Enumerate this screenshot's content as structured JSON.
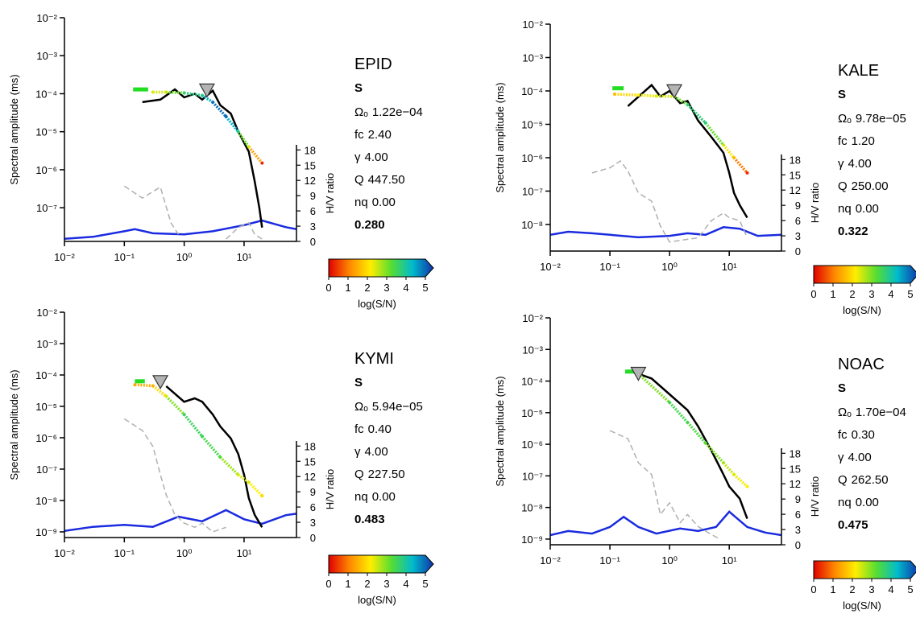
{
  "chart_data": [
    {
      "type": "line",
      "title": "EPID",
      "phase": "S",
      "ylabel": "Spectral amplitude (ms)",
      "y2label": "H/V ratio",
      "log_x": true,
      "log_y": true,
      "xlim": [
        0.01,
        75
      ],
      "xticks": [
        {
          "value": 0.01,
          "label": "10⁻²"
        },
        {
          "value": 0.1,
          "label": "10⁻¹"
        },
        {
          "value": 1,
          "label": "10⁰"
        },
        {
          "value": 10,
          "label": "10¹"
        }
      ],
      "ylim": [
        1.3e-08,
        0.01
      ],
      "yticks": [
        {
          "value": 0.01,
          "label": "10⁻²"
        },
        {
          "value": 0.001,
          "label": "10⁻³"
        },
        {
          "value": 0.0001,
          "label": "10⁻⁴"
        },
        {
          "value": 1e-05,
          "label": "10⁻⁵"
        },
        {
          "value": 1e-06,
          "label": "10⁻⁶"
        },
        {
          "value": 1e-07,
          "label": "10⁻⁷"
        }
      ],
      "y2lim": [
        0,
        19
      ],
      "y2ticks": [
        0,
        3,
        6,
        9,
        12,
        15,
        18
      ],
      "spectrum": {
        "color": "#000000",
        "x": [
          0.2,
          0.4,
          0.7,
          1.0,
          1.5,
          2,
          3,
          4,
          6,
          8,
          12,
          15,
          18,
          20
        ],
        "values": [
          6e-05,
          7e-05,
          0.00013,
          8e-05,
          0.0001,
          7e-05,
          0.00012,
          5e-05,
          3e-05,
          1e-05,
          3e-06,
          5e-07,
          1e-07,
          3e-08
        ]
      },
      "noise": {
        "color": "#b0b0b0",
        "x": [
          0.1,
          0.2,
          0.4,
          0.6,
          0.8,
          1.0,
          5,
          8,
          12,
          15,
          20
        ],
        "values": [
          3.7e-07,
          1.8e-07,
          3.5e-07,
          4e-08,
          2e-08,
          null,
          1.5e-08,
          3e-08,
          4e-08,
          2e-08,
          1.5e-08
        ]
      },
      "model": {
        "x": [
          0.3,
          0.5,
          1,
          2,
          3,
          5,
          8,
          12,
          20
        ],
        "values": [
          0.00011,
          0.00011,
          0.000105,
          9e-05,
          6e-05,
          2.5e-05,
          1e-05,
          4e-06,
          1.5e-06
        ],
        "snr": [
          2.2,
          2.3,
          3.4,
          3.6,
          4.5,
          4.6,
          3.5,
          2.2,
          0.3
        ]
      },
      "plateau": {
        "color": "#22dd22",
        "x": [
          0.14,
          0.25
        ],
        "values": [
          0.00013,
          0.00013
        ]
      },
      "hv": {
        "color": "#1a2be0",
        "axis": "y2",
        "x": [
          0.01,
          0.03,
          0.1,
          0.15,
          0.3,
          1,
          3,
          10,
          20,
          50,
          75
        ],
        "values": [
          0.5,
          0.9,
          2.0,
          2.4,
          1.6,
          1.4,
          2.0,
          3.2,
          4.1,
          2.8,
          2.4
        ]
      },
      "parameters": {
        "names": [
          "Ωₒ",
          "fc",
          "γ",
          "Q",
          "nq"
        ],
        "values": [
          0.000122,
          2.4,
          4,
          447.5,
          0
        ],
        "value_labels": [
          "1.22e−04",
          "2.40",
          "4.00",
          "447.50",
          "0.00"
        ]
      },
      "score": 0.28,
      "score_label": "0.280",
      "colorbar": {
        "label": "log(S/N)",
        "lim": [
          0,
          5
        ],
        "ticks": [
          0,
          1,
          2,
          3,
          4,
          5
        ],
        "colors": [
          "#e00000",
          "#ff8800",
          "#ffee00",
          "#55dd33",
          "#00bbcc",
          "#1133aa"
        ]
      }
    },
    {
      "type": "line",
      "title": "KALE",
      "phase": "S",
      "ylabel": "Spectral amplitude (ms)",
      "y2label": "H/V ratio",
      "log_x": true,
      "log_y": true,
      "xlim": [
        0.01,
        75
      ],
      "xticks": [
        {
          "value": 0.01,
          "label": "10⁻²"
        },
        {
          "value": 0.1,
          "label": "10⁻¹"
        },
        {
          "value": 1,
          "label": "10⁰"
        },
        {
          "value": 10,
          "label": "10¹"
        }
      ],
      "ylim": [
        1.6e-09,
        0.01
      ],
      "yticks": [
        {
          "value": 0.01,
          "label": "10⁻²"
        },
        {
          "value": 0.001,
          "label": "10⁻³"
        },
        {
          "value": 0.0001,
          "label": "10⁻⁴"
        },
        {
          "value": 1e-05,
          "label": "10⁻⁵"
        },
        {
          "value": 1e-06,
          "label": "10⁻⁶"
        },
        {
          "value": 1e-07,
          "label": "10⁻⁷"
        },
        {
          "value": 1e-08,
          "label": "10⁻⁸"
        }
      ],
      "y2lim": [
        0,
        19
      ],
      "y2ticks": [
        0,
        3,
        6,
        9,
        12,
        15,
        18
      ],
      "spectrum": {
        "color": "#000000",
        "x": [
          0.2,
          0.5,
          0.7,
          1,
          1.5,
          2,
          3,
          5,
          8,
          10,
          12,
          15,
          20
        ],
        "values": [
          3.5e-05,
          0.00015,
          6.8e-05,
          0.0001,
          4.3e-05,
          5e-05,
          1.3e-05,
          4.2e-06,
          1.4e-06,
          3.5e-07,
          8.8e-08,
          3.8e-08,
          1.6e-08
        ]
      },
      "noise": {
        "color": "#b0b0b0",
        "x": [
          0.05,
          0.1,
          0.15,
          0.2,
          0.3,
          0.5,
          0.7,
          1,
          3,
          5,
          8,
          10,
          15,
          20
        ],
        "values": [
          3.5e-07,
          5e-07,
          8e-07,
          4e-07,
          8.8e-08,
          5e-08,
          9e-09,
          3e-09,
          4e-09,
          1.3e-08,
          2.2e-08,
          1.6e-08,
          1.3e-08,
          4e-09
        ]
      },
      "model": {
        "x": [
          0.12,
          0.3,
          0.6,
          1.2,
          2,
          4,
          8,
          12,
          20
        ],
        "values": [
          8e-05,
          7.5e-05,
          7e-05,
          6.8e-05,
          3.9e-05,
          1.1e-05,
          2.4e-06,
          1e-06,
          3.5e-07
        ],
        "snr": [
          1.5,
          2.0,
          2.2,
          2.3,
          3.4,
          3.5,
          2.3,
          1.5,
          0.3
        ]
      },
      "plateau": {
        "color": "#22dd22",
        "x": [
          0.11,
          0.17
        ],
        "values": [
          0.00012,
          0.00012
        ]
      },
      "hv": {
        "color": "#1a2be0",
        "axis": "y2",
        "x": [
          0.01,
          0.02,
          0.05,
          0.1,
          0.3,
          1,
          2,
          4,
          8,
          15,
          30,
          75
        ],
        "values": [
          3.2,
          3.8,
          3.5,
          3.2,
          2.7,
          3.0,
          3.5,
          3.2,
          4.7,
          4.4,
          3.0,
          3.2
        ]
      },
      "parameters": {
        "names": [
          "Ωₒ",
          "fc",
          "γ",
          "Q",
          "nq"
        ],
        "values": [
          9.78e-05,
          1.2,
          4,
          250,
          0
        ],
        "value_labels": [
          "9.78e−05",
          "1.20",
          "4.00",
          "250.00",
          "0.00"
        ]
      },
      "score": 0.322,
      "score_label": "0.322",
      "colorbar": {
        "label": "log(S/N)",
        "lim": [
          0,
          5
        ],
        "ticks": [
          0,
          1,
          2,
          3,
          4,
          5
        ],
        "colors": [
          "#e00000",
          "#ff8800",
          "#ffee00",
          "#55dd33",
          "#00bbcc",
          "#1133aa"
        ]
      }
    },
    {
      "type": "line",
      "title": "KYMI",
      "phase": "S",
      "ylabel": "Spectral amplitude (ms)",
      "y2label": "H/V ratio",
      "log_x": true,
      "log_y": true,
      "xlim": [
        0.01,
        75
      ],
      "xticks": [
        {
          "value": 0.01,
          "label": "10⁻²"
        },
        {
          "value": 0.1,
          "label": "10⁻¹"
        },
        {
          "value": 1,
          "label": "10⁰"
        },
        {
          "value": 10,
          "label": "10¹"
        }
      ],
      "ylim": [
        6.6e-10,
        0.01
      ],
      "yticks": [
        {
          "value": 0.01,
          "label": "10⁻²"
        },
        {
          "value": 0.001,
          "label": "10⁻³"
        },
        {
          "value": 0.0001,
          "label": "10⁻⁴"
        },
        {
          "value": 1e-05,
          "label": "10⁻⁵"
        },
        {
          "value": 1e-06,
          "label": "10⁻⁶"
        },
        {
          "value": 1e-07,
          "label": "10⁻⁷"
        },
        {
          "value": 1e-08,
          "label": "10⁻⁸"
        },
        {
          "value": 1e-09,
          "label": "10⁻⁹"
        }
      ],
      "y2lim": [
        0,
        19
      ],
      "y2ticks": [
        0,
        3,
        6,
        9,
        12,
        15,
        18
      ],
      "spectrum": {
        "color": "#000000",
        "x": [
          0.5,
          1,
          1.5,
          2,
          3,
          4,
          6,
          8,
          10,
          12,
          15,
          20
        ],
        "values": [
          4.4e-05,
          1.4e-05,
          1.8e-05,
          1.4e-05,
          5.5e-06,
          2.3e-06,
          9.5e-07,
          3e-07,
          6.6e-08,
          1.2e-08,
          3.5e-09,
          1.4e-09
        ]
      },
      "noise": {
        "color": "#b0b0b0",
        "x": [
          0.1,
          0.2,
          0.3,
          0.4,
          0.5,
          0.7,
          1,
          1.5,
          2,
          3,
          5
        ],
        "values": [
          4e-06,
          1.7e-06,
          5.3e-07,
          6.6e-08,
          1.5e-08,
          3.5e-09,
          1.9e-09,
          1.4e-09,
          1.9e-09,
          1e-09,
          1.4e-09
        ]
      },
      "model": {
        "x": [
          0.15,
          0.3,
          0.5,
          1,
          2,
          4,
          8,
          12,
          20
        ],
        "values": [
          4.9e-05,
          4.5e-05,
          2.1e-05,
          5.5e-06,
          1.1e-06,
          2.4e-07,
          6.6e-08,
          3.8e-08,
          1.4e-08
        ],
        "snr": [
          1.3,
          1.4,
          2.2,
          3.3,
          3.3,
          3.0,
          2.2,
          2.2,
          1.8
        ]
      },
      "plateau": {
        "color": "#22dd22",
        "x": [
          0.15,
          0.22
        ],
        "values": [
          6.3e-05,
          6.3e-05
        ]
      },
      "hv": {
        "color": "#1a2be0",
        "axis": "y2",
        "x": [
          0.01,
          0.03,
          0.1,
          0.3,
          0.8,
          2,
          5,
          10,
          20,
          50,
          75
        ],
        "values": [
          1.3,
          2.1,
          2.5,
          2.1,
          4.1,
          3.2,
          5.4,
          3.6,
          2.7,
          4.4,
          4.7
        ]
      },
      "parameters": {
        "names": [
          "Ωₒ",
          "fc",
          "γ",
          "Q",
          "nq"
        ],
        "values": [
          5.94e-05,
          0.4,
          4,
          227.5,
          0
        ],
        "value_labels": [
          "5.94e−05",
          "0.40",
          "4.00",
          "227.50",
          "0.00"
        ]
      },
      "score": 0.483,
      "score_label": "0.483",
      "colorbar": {
        "label": "log(S/N)",
        "lim": [
          0,
          5
        ],
        "ticks": [
          0,
          1,
          2,
          3,
          4,
          5
        ],
        "colors": [
          "#e00000",
          "#ff8800",
          "#ffee00",
          "#55dd33",
          "#00bbcc",
          "#1133aa"
        ]
      }
    },
    {
      "type": "line",
      "title": "NOAC",
      "phase": "S",
      "ylabel": "Spectral amplitude (ms)",
      "y2label": "H/V ratio",
      "log_x": true,
      "log_y": true,
      "xlim": [
        0.01,
        75
      ],
      "xticks": [
        {
          "value": 0.01,
          "label": "10⁻²"
        },
        {
          "value": 0.1,
          "label": "10⁻¹"
        },
        {
          "value": 1,
          "label": "10⁰"
        },
        {
          "value": 10,
          "label": "10¹"
        }
      ],
      "ylim": [
        6.6e-10,
        0.01
      ],
      "yticks": [
        {
          "value": 0.01,
          "label": "10⁻²"
        },
        {
          "value": 0.001,
          "label": "10⁻³"
        },
        {
          "value": 0.0001,
          "label": "10⁻⁴"
        },
        {
          "value": 1e-05,
          "label": "10⁻⁵"
        },
        {
          "value": 1e-06,
          "label": "10⁻⁶"
        },
        {
          "value": 1e-07,
          "label": "10⁻⁷"
        },
        {
          "value": 1e-08,
          "label": "10⁻⁸"
        },
        {
          "value": 1e-09,
          "label": "10⁻⁹"
        }
      ],
      "y2lim": [
        0,
        19
      ],
      "y2ticks": [
        0,
        3,
        6,
        9,
        12,
        15,
        18
      ],
      "spectrum": {
        "color": "#000000",
        "x": [
          0.25,
          0.3,
          0.5,
          1,
          2,
          3,
          5,
          8,
          10,
          15,
          20
        ],
        "values": [
          0.0002,
          0.00017,
          0.00012,
          3.8e-05,
          1.2e-05,
          3.7e-06,
          6.4e-07,
          1.1e-07,
          4.6e-08,
          1.9e-08,
          4.4e-09
        ]
      },
      "noise": {
        "color": "#b0b0b0",
        "x": [
          0.1,
          0.2,
          0.3,
          0.5,
          0.7,
          1,
          1.5,
          2,
          3,
          5,
          7
        ],
        "values": [
          2.7e-06,
          1.5e-06,
          2.6e-07,
          1.1e-07,
          6e-09,
          1.4e-08,
          3.3e-09,
          6e-09,
          2.5e-09,
          1.4e-09,
          1e-09
        ]
      },
      "model": {
        "x": [
          0.3,
          1,
          2,
          4,
          8,
          12,
          20
        ],
        "values": [
          0.00017,
          2.1e-05,
          4.9e-06,
          1.1e-06,
          2.6e-07,
          1.1e-07,
          4.6e-08
        ],
        "snr": [
          2.3,
          3.2,
          3.2,
          3.0,
          2.5,
          2.2,
          2.0
        ]
      },
      "plateau": {
        "color": "#22dd22",
        "x": [
          0.18,
          0.3
        ],
        "values": [
          0.0002,
          0.0002
        ]
      },
      "hv": {
        "color": "#1a2be0",
        "axis": "y2",
        "x": [
          0.01,
          0.02,
          0.05,
          0.1,
          0.17,
          0.3,
          0.6,
          1.5,
          3,
          6,
          10,
          20,
          40,
          75
        ],
        "values": [
          1.9,
          2.7,
          2.2,
          3.5,
          5.5,
          3.5,
          2.2,
          3.2,
          2.7,
          3.5,
          6.5,
          3.5,
          2.4,
          1.9
        ]
      },
      "parameters": {
        "names": [
          "Ωₒ",
          "fc",
          "γ",
          "Q",
          "nq"
        ],
        "values": [
          0.00017,
          0.3,
          4,
          262.5,
          0
        ],
        "value_labels": [
          "1.70e−04",
          "0.30",
          "4.00",
          "262.50",
          "0.00"
        ]
      },
      "score": 0.475,
      "score_label": "0.475",
      "colorbar": {
        "label": "log(S/N)",
        "lim": [
          0,
          5
        ],
        "ticks": [
          0,
          1,
          2,
          3,
          4,
          5
        ],
        "colors": [
          "#e00000",
          "#ff8800",
          "#ffee00",
          "#55dd33",
          "#00bbcc",
          "#1133aa"
        ]
      }
    }
  ]
}
